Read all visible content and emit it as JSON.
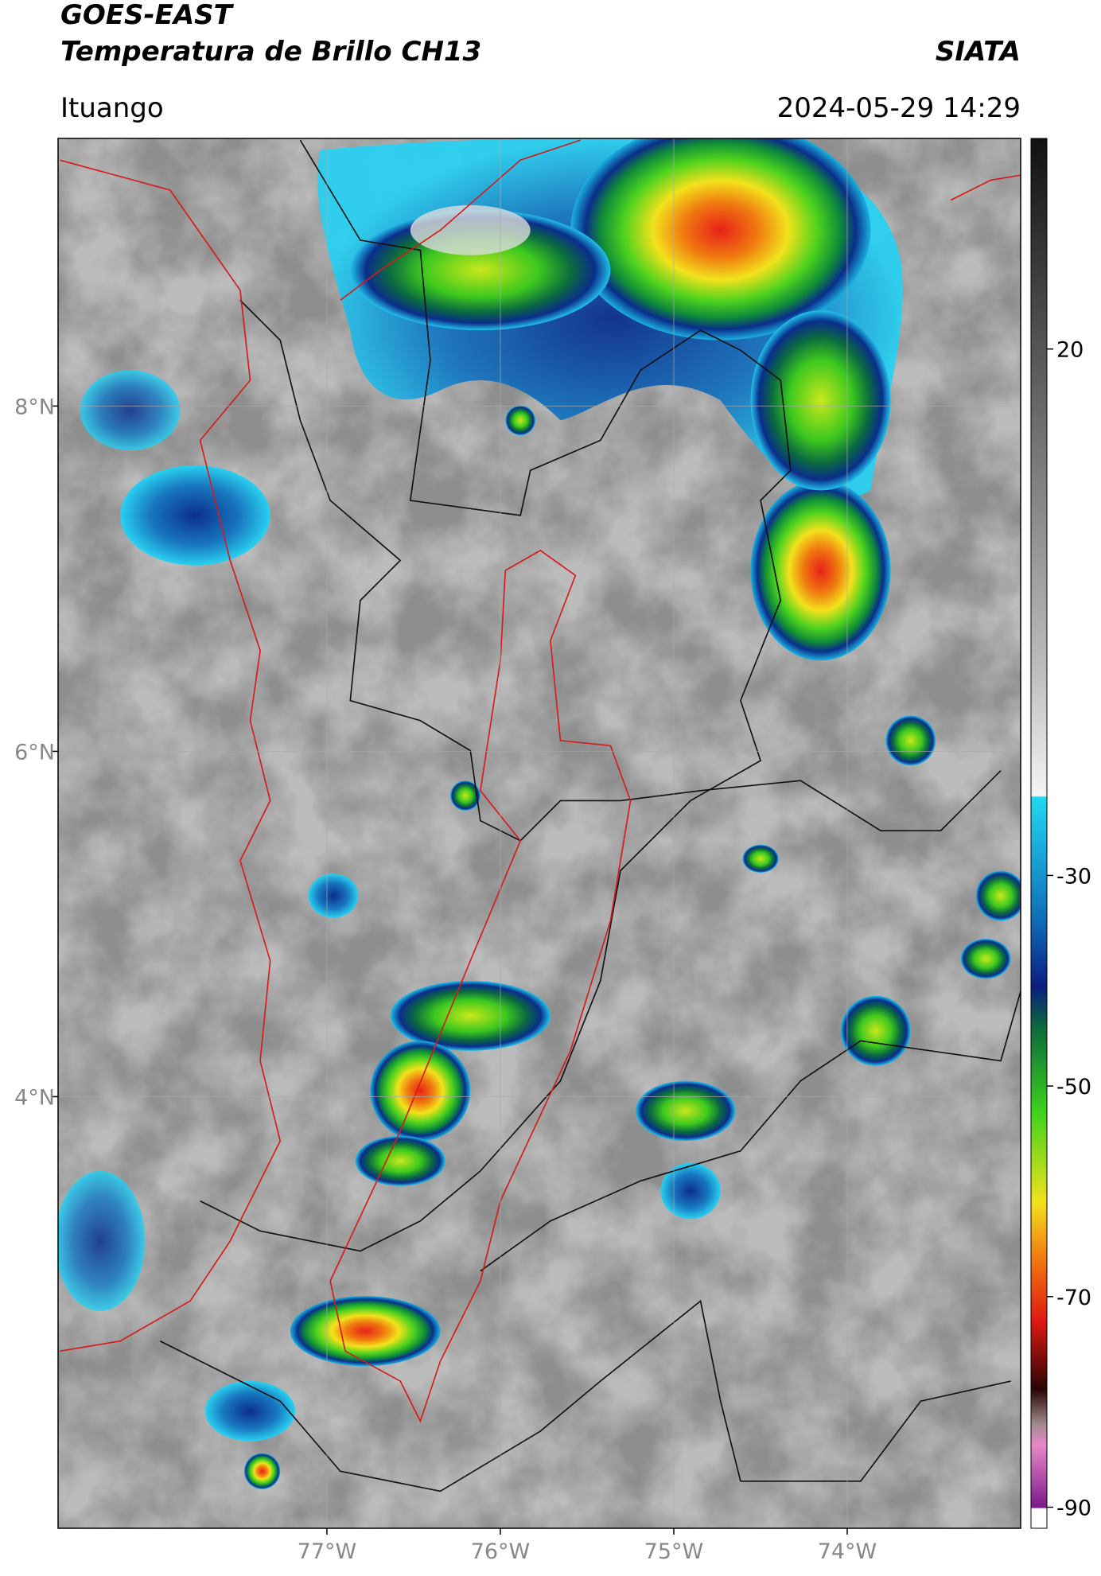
{
  "header": {
    "title": "GOES-EAST",
    "subtitle": "Temperatura de Brillo CH13",
    "brand": "SIATA",
    "location": "Ituango",
    "datetime": "2024-05-29 14:29"
  },
  "map": {
    "xlim": [
      -78.55,
      -73.0
    ],
    "ylim": [
      1.5,
      9.55
    ],
    "xticks": [
      {
        "value": -77,
        "label": "77°W"
      },
      {
        "value": -76,
        "label": "76°W"
      },
      {
        "value": -75,
        "label": "75°W"
      },
      {
        "value": -74,
        "label": "74°W"
      }
    ],
    "yticks": [
      {
        "value": 8,
        "label": "8°N"
      },
      {
        "value": 6,
        "label": "6°N"
      },
      {
        "value": 4,
        "label": "4°N"
      }
    ],
    "grid": true
  },
  "colorbar": {
    "lim": [
      -92,
      40
    ],
    "ticks": [
      20,
      -30,
      -50,
      -70,
      -90
    ]
  }
}
